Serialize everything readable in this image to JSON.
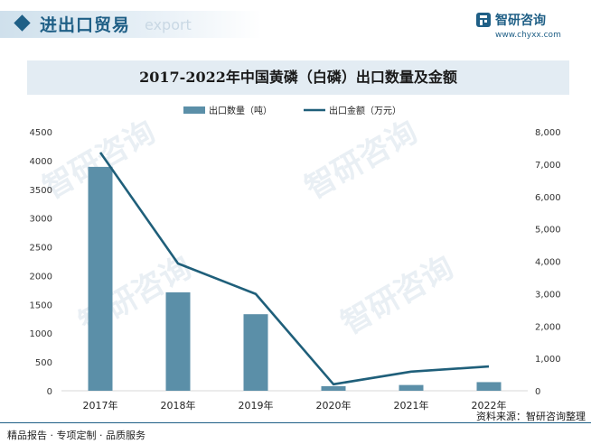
{
  "header": {
    "section_title": "进出口贸易",
    "section_sub": "export",
    "brand_name": "智研咨询",
    "brand_url": "www.chyxx.com"
  },
  "title": "2017-2022年中国黄磷（白磷）出口数量及金额",
  "footer": {
    "left": "精品报告 · 专项定制 · 品质服务",
    "source": "资料来源：智研咨询整理"
  },
  "watermark": "智研咨询",
  "chart_data": {
    "type": "bar",
    "categories": [
      "2017年",
      "2018年",
      "2019年",
      "2020年",
      "2021年",
      "2022年"
    ],
    "series": [
      {
        "name": "出口数量（吨）",
        "type": "bar",
        "axis": "left",
        "color": "#5b8fa8",
        "values": [
          3890,
          1710,
          1330,
          80,
          100,
          150
        ]
      },
      {
        "name": "出口金额（万元）",
        "type": "line",
        "axis": "right",
        "color": "#1f5f7a",
        "values": [
          7360,
          3930,
          2990,
          200,
          590,
          750
        ]
      }
    ],
    "y_left": {
      "ylim": [
        0,
        4500
      ],
      "ticks": [
        "0",
        "500",
        "1000",
        "1500",
        "2000",
        "2500",
        "3000",
        "3500",
        "4000",
        "4500"
      ]
    },
    "y_right": {
      "ylim": [
        0,
        8000
      ],
      "ticks": [
        "0",
        "1,000",
        "2,000",
        "3,000",
        "4,000",
        "5,000",
        "6,000",
        "7,000",
        "8,000"
      ]
    },
    "legend": "top-center",
    "grid": false
  }
}
